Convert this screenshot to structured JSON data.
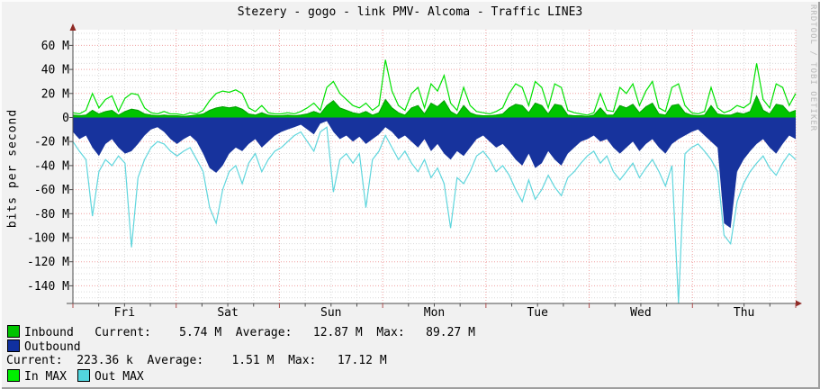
{
  "watermark": "RRDTOOL / TOBI OETIKER",
  "stats": {
    "inbound": {
      "current": "5.74 M",
      "average": "12.87 M",
      "max": "89.27 M"
    },
    "outbound": {
      "current": "223.36 k",
      "average": "1.51 M",
      "max": "17.12 M"
    }
  },
  "legend": {
    "rows": [
      {
        "swatch": "#00c400",
        "text": "Inbound   Current:    5.74 M  Average:   12.87 M  Max:   89.27 M"
      },
      {
        "swatch": "#10309f",
        "text": "Outbound"
      },
      {
        "text": "Current:  223.36 k  Average:    1.51 M  Max:   17.12 M"
      },
      {
        "items": [
          {
            "swatch": "#00ef00",
            "label": "In MAX"
          },
          {
            "swatch": "#52d5de",
            "label": "Out MAX"
          }
        ]
      }
    ]
  },
  "chart_data": {
    "type": "area",
    "title": "Stezery - gogo - link PMV- Alcoma - Traffic LINE3",
    "ylabel": "bits per second",
    "unit": "bits per second (M = 1e6)",
    "ylim": [
      -155,
      73
    ],
    "x_range": "7 days, Fri 00:00 through Thu 24:00",
    "x_step_hours": 1.5,
    "x_labels": [
      "Fri",
      "Sat",
      "Sun",
      "Mon",
      "Tue",
      "Wed",
      "Thu"
    ],
    "y_ticks": [
      {
        "v": 60,
        "label": "60 M"
      },
      {
        "v": 40,
        "label": "40 M"
      },
      {
        "v": 20,
        "label": "20 M"
      },
      {
        "v": 0,
        "label": "0"
      },
      {
        "v": -20,
        "label": "-20 M"
      },
      {
        "v": -40,
        "label": "-40 M"
      },
      {
        "v": -60,
        "label": "-60 M"
      },
      {
        "v": -80,
        "label": "-80 M"
      },
      {
        "v": -100,
        "label": "-100 M"
      },
      {
        "v": -120,
        "label": "-120 M"
      },
      {
        "v": -140,
        "label": "-140 M"
      }
    ],
    "grid": {
      "h_minor_step_M": 5,
      "h_major_step_M": 20,
      "v_minor_step_h": 6,
      "v_major_step_h": 24
    },
    "series": [
      {
        "name": "Inbound",
        "type": "area",
        "color": "#00c400",
        "edge_color": "#00a000",
        "values": [
          2,
          1.5,
          2,
          6,
          3,
          5,
          6,
          2,
          5,
          7,
          6,
          3,
          2,
          1.5,
          2,
          1.5,
          1.5,
          1,
          1.5,
          2,
          3,
          6,
          8,
          9,
          8,
          9,
          7,
          3,
          2,
          4,
          2,
          1.5,
          1.5,
          2,
          1.5,
          2,
          3,
          5,
          3,
          10,
          14,
          8,
          6,
          4,
          3,
          5,
          2,
          4,
          15,
          8,
          4,
          2,
          8,
          10,
          3,
          12,
          9,
          14,
          5,
          2,
          10,
          4,
          2,
          1.5,
          1.5,
          2,
          3,
          8,
          11,
          10,
          4,
          12,
          10,
          3,
          11,
          10,
          2,
          1.5,
          1.5,
          1,
          2,
          8,
          2,
          2,
          10,
          8,
          11,
          4,
          9,
          12,
          3,
          2,
          10,
          11,
          4,
          2,
          1.5,
          2,
          10,
          3,
          2,
          2,
          4,
          3,
          5,
          18,
          6,
          3,
          11,
          10,
          4,
          6
        ]
      },
      {
        "name": "Outbound",
        "type": "area",
        "color": "#17339d",
        "values": [
          -12,
          -18,
          -15,
          -25,
          -32,
          -22,
          -18,
          -25,
          -30,
          -28,
          -22,
          -15,
          -10,
          -8,
          -12,
          -18,
          -22,
          -18,
          -15,
          -20,
          -30,
          -42,
          -46,
          -40,
          -30,
          -25,
          -28,
          -22,
          -18,
          -25,
          -20,
          -15,
          -12,
          -10,
          -8,
          -6,
          -10,
          -14,
          -5,
          -3,
          -12,
          -18,
          -15,
          -20,
          -16,
          -22,
          -18,
          -14,
          -8,
          -12,
          -18,
          -15,
          -20,
          -25,
          -18,
          -28,
          -22,
          -30,
          -35,
          -28,
          -32,
          -25,
          -18,
          -15,
          -20,
          -25,
          -22,
          -28,
          -35,
          -40,
          -30,
          -42,
          -38,
          -28,
          -35,
          -40,
          -30,
          -25,
          -20,
          -18,
          -15,
          -20,
          -18,
          -25,
          -30,
          -25,
          -20,
          -28,
          -22,
          -18,
          -25,
          -30,
          -22,
          -18,
          -15,
          -12,
          -10,
          -15,
          -20,
          -25,
          -88,
          -92,
          -45,
          -35,
          -28,
          -22,
          -18,
          -25,
          -30,
          -22,
          -15,
          -18
        ]
      },
      {
        "name": "In MAX",
        "type": "line",
        "color": "#00e200",
        "values": [
          4,
          3,
          6,
          20,
          8,
          15,
          18,
          5,
          16,
          20,
          19,
          8,
          4,
          3,
          5,
          3,
          3,
          2,
          4,
          3,
          6,
          14,
          20,
          22,
          21,
          23,
          20,
          8,
          5,
          10,
          4,
          3,
          3,
          4,
          3,
          5,
          8,
          12,
          6,
          25,
          30,
          20,
          15,
          10,
          8,
          12,
          6,
          10,
          48,
          22,
          10,
          6,
          20,
          25,
          8,
          28,
          22,
          35,
          12,
          6,
          25,
          10,
          5,
          4,
          3,
          5,
          8,
          20,
          28,
          25,
          10,
          30,
          25,
          8,
          28,
          25,
          6,
          4,
          3,
          2,
          4,
          20,
          6,
          5,
          25,
          20,
          28,
          10,
          22,
          30,
          8,
          5,
          25,
          28,
          10,
          4,
          3,
          5,
          25,
          8,
          4,
          6,
          10,
          8,
          12,
          45,
          15,
          8,
          28,
          25,
          10,
          20
        ]
      },
      {
        "name": "Out MAX",
        "type": "line",
        "color": "#5fd6dd",
        "values": [
          -20,
          -28,
          -35,
          -82,
          -45,
          -35,
          -40,
          -32,
          -38,
          -108,
          -50,
          -35,
          -25,
          -20,
          -22,
          -28,
          -32,
          -28,
          -25,
          -35,
          -45,
          -75,
          -88,
          -60,
          -45,
          -40,
          -55,
          -38,
          -30,
          -45,
          -35,
          -28,
          -25,
          -20,
          -15,
          -12,
          -20,
          -28,
          -12,
          -8,
          -62,
          -35,
          -30,
          -38,
          -30,
          -75,
          -35,
          -28,
          -15,
          -25,
          -35,
          -28,
          -38,
          -45,
          -35,
          -50,
          -42,
          -55,
          -92,
          -50,
          -55,
          -45,
          -32,
          -28,
          -35,
          -45,
          -40,
          -48,
          -60,
          -70,
          -52,
          -68,
          -60,
          -48,
          -58,
          -65,
          -50,
          -45,
          -38,
          -32,
          -28,
          -38,
          -32,
          -45,
          -52,
          -45,
          -38,
          -50,
          -42,
          -35,
          -45,
          -57,
          -40,
          -160,
          -30,
          -25,
          -22,
          -28,
          -35,
          -45,
          -98,
          -105,
          -70,
          -55,
          -45,
          -38,
          -32,
          -42,
          -48,
          -38,
          -30,
          -35
        ]
      }
    ]
  }
}
